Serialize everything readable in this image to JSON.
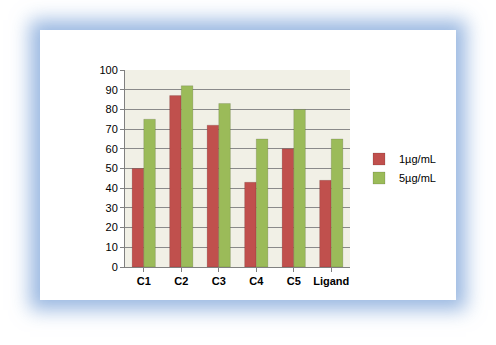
{
  "chart_data": {
    "type": "bar",
    "categories": [
      "C1",
      "C2",
      "C3",
      "C4",
      "C5",
      "Ligand"
    ],
    "series": [
      {
        "name": "1µg/mL",
        "color": "#c0504d",
        "values": [
          50,
          87,
          72,
          43,
          60,
          44
        ]
      },
      {
        "name": "5µg/mL",
        "color": "#9bbb59",
        "values": [
          75,
          92,
          83,
          65,
          80,
          65
        ]
      }
    ],
    "ylim": [
      0,
      100
    ],
    "yticks": [
      0,
      10,
      20,
      30,
      40,
      50,
      60,
      70,
      80,
      90,
      100
    ],
    "grid": true,
    "legend": "right"
  }
}
